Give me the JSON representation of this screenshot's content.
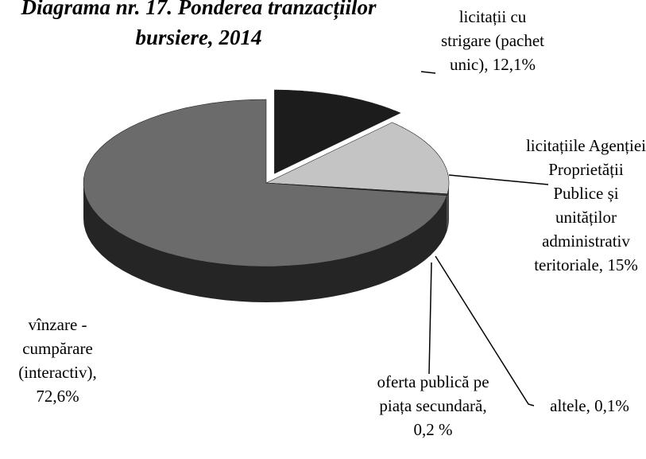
{
  "chart_data": {
    "type": "pie",
    "title": "Diagrama nr. 17. Ponderea tranzacțiilor bursiere, 2014",
    "categories": [
      "licitații cu strigare (pachet unic),",
      "licitațiile Agenției Proprietății Publice și unităților administrativ teritoriale,",
      "altele,",
      "oferta publică pe piața secundară,",
      "vînzare - cumpărare (interactiv),"
    ],
    "values": [
      12.1,
      15,
      0.1,
      0.2,
      72.6
    ],
    "value_labels": [
      "12,1%",
      "15%",
      "0,1%",
      "0,2 %",
      "72,6%"
    ],
    "colors": [
      "#1c1c1c",
      "#c4c4c4",
      "#383838",
      "#4a4a4a",
      "#6b6b6b"
    ]
  }
}
